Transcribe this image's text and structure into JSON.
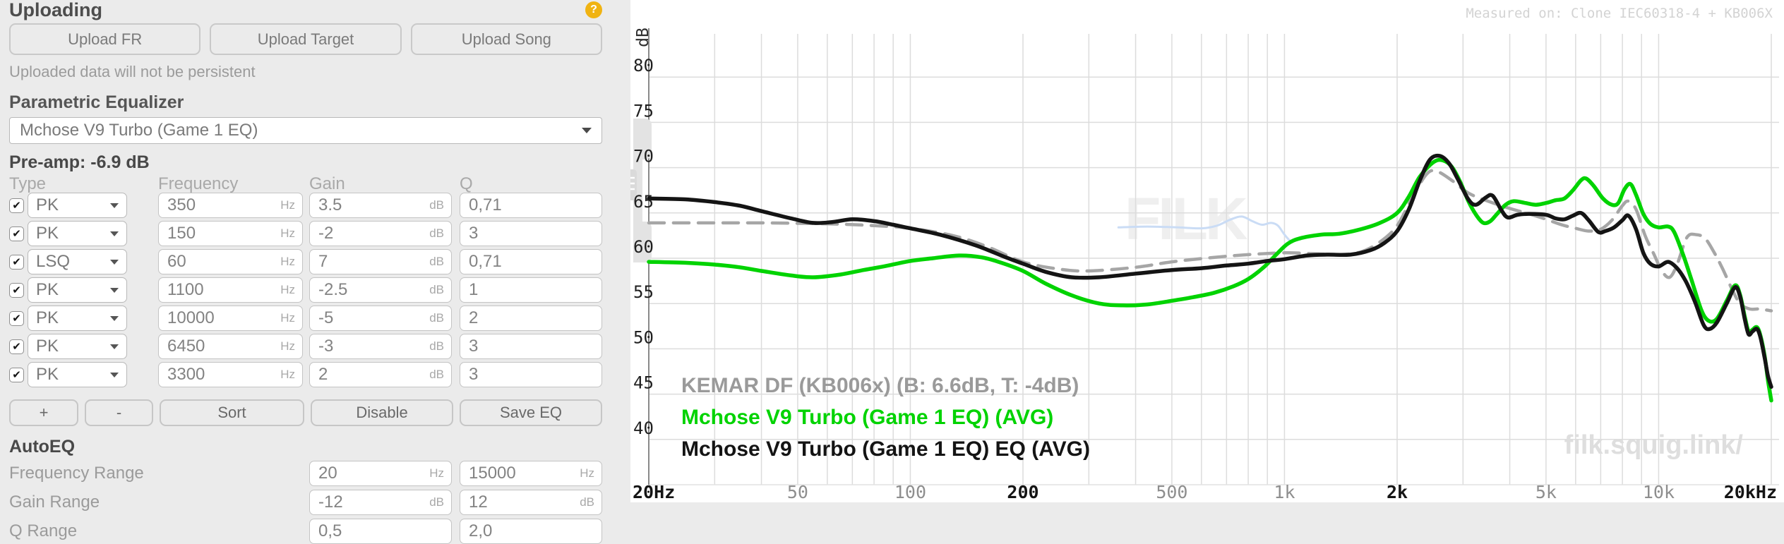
{
  "uploading": {
    "title": "Uploading",
    "help_icon": "?",
    "buttons": [
      "Upload FR",
      "Upload Target",
      "Upload Song"
    ],
    "note": "Uploaded data will not be persistent"
  },
  "parametric_eq": {
    "title": "Parametric Equalizer",
    "selected_profile": "Mchose V9 Turbo (Game 1 EQ)",
    "preamp_label": "Pre-amp: -6.9 dB",
    "columns": [
      "Type",
      "Frequency",
      "Gain",
      "Q"
    ],
    "filters": [
      {
        "enabled": true,
        "type": "PK",
        "freq": "350",
        "freq_unit": "Hz",
        "gain": "3.5",
        "gain_unit": "dB",
        "q": "0,71"
      },
      {
        "enabled": true,
        "type": "PK",
        "freq": "150",
        "freq_unit": "Hz",
        "gain": "-2",
        "gain_unit": "dB",
        "q": "3"
      },
      {
        "enabled": true,
        "type": "LSQ",
        "freq": "60",
        "freq_unit": "Hz",
        "gain": "7",
        "gain_unit": "dB",
        "q": "0,71"
      },
      {
        "enabled": true,
        "type": "PK",
        "freq": "1100",
        "freq_unit": "Hz",
        "gain": "-2.5",
        "gain_unit": "dB",
        "q": "1"
      },
      {
        "enabled": true,
        "type": "PK",
        "freq": "10000",
        "freq_unit": "Hz",
        "gain": "-5",
        "gain_unit": "dB",
        "q": "2"
      },
      {
        "enabled": true,
        "type": "PK",
        "freq": "6450",
        "freq_unit": "Hz",
        "gain": "-3",
        "gain_unit": "dB",
        "q": "3"
      },
      {
        "enabled": true,
        "type": "PK",
        "freq": "3300",
        "freq_unit": "Hz",
        "gain": "2",
        "gain_unit": "dB",
        "q": "3"
      }
    ],
    "actions": [
      "+",
      "-",
      "Sort",
      "Disable",
      "Save EQ"
    ]
  },
  "autoeq": {
    "title": "AutoEQ",
    "rows": [
      {
        "label": "Frequency Range",
        "min": "20",
        "min_unit": "Hz",
        "max": "15000",
        "max_unit": "Hz"
      },
      {
        "label": "Gain Range",
        "min": "-12",
        "min_unit": "dB",
        "max": "12",
        "max_unit": "dB"
      },
      {
        "label": "Q Range",
        "min": "0,5",
        "min_unit": "",
        "max": "2,0",
        "max_unit": ""
      }
    ]
  },
  "chart_data": {
    "type": "line",
    "measured_on": "Measured on: Clone IEC60318-4 + KB006X",
    "watermark": "filk.squig.link/",
    "bg_watermark": "FILK",
    "grid": true,
    "legend_position": "bottom-left",
    "x_axis": {
      "scale": "log",
      "min": 20,
      "max": 20000,
      "gridlines": [
        30,
        40,
        50,
        60,
        70,
        80,
        90,
        100,
        200,
        300,
        400,
        500,
        600,
        700,
        800,
        900,
        1000,
        2000,
        3000,
        4000,
        5000,
        6000,
        7000,
        8000,
        9000,
        10000,
        20000
      ],
      "ticks": [
        {
          "f": 20,
          "label": "20Hz",
          "major": true
        },
        {
          "f": 50,
          "label": "50",
          "major": false
        },
        {
          "f": 100,
          "label": "100",
          "major": false
        },
        {
          "f": 200,
          "label": "200",
          "major": true
        },
        {
          "f": 500,
          "label": "500",
          "major": false
        },
        {
          "f": 1000,
          "label": "1k",
          "major": false
        },
        {
          "f": 2000,
          "label": "2k",
          "major": true
        },
        {
          "f": 5000,
          "label": "5k",
          "major": false
        },
        {
          "f": 10000,
          "label": "10k",
          "major": false
        },
        {
          "f": 20000,
          "label": "20kHz",
          "major": true
        }
      ]
    },
    "y_axis": {
      "label": "dB",
      "min": 35,
      "max": 85,
      "tick_step": 5,
      "ticks": [
        80,
        75,
        70,
        65,
        60,
        55,
        50,
        45,
        40
      ]
    },
    "legend": [
      {
        "text": "KEMAR DF (KB006x) (B: 6.6dB, T: -4dB)",
        "color": "#9a9a9a"
      },
      {
        "text": "Mchose V9 Turbo (Game 1 EQ) (AVG)",
        "color": "#00d300"
      },
      {
        "text": "Mchose V9 Turbo (Game 1 EQ) EQ (AVG)",
        "color": "#141414"
      }
    ],
    "series": [
      {
        "name": "hover-preview-trace",
        "color": "#cadcf5",
        "dash": "",
        "width": 3,
        "points": [
          [
            360,
            63.4
          ],
          [
            430,
            63.5
          ],
          [
            520,
            63.4
          ],
          [
            600,
            63.3
          ],
          [
            660,
            63.6
          ],
          [
            720,
            64.3
          ],
          [
            770,
            64.6
          ],
          [
            820,
            64.1
          ],
          [
            870,
            63.7
          ],
          [
            920,
            63.9
          ],
          [
            960,
            63.6
          ],
          [
            1000,
            62.6
          ],
          [
            1040,
            61.8
          ]
        ]
      },
      {
        "name": "KEMAR DF (KB006x) (B: 6.6dB, T: -4dB)",
        "color": "#a6a6a6",
        "dash": "22 13",
        "width": 4.5,
        "points": [
          [
            20,
            63.9
          ],
          [
            30,
            63.9
          ],
          [
            40,
            63.9
          ],
          [
            60,
            63.8
          ],
          [
            80,
            63.6
          ],
          [
            100,
            63.3
          ],
          [
            130,
            62.5
          ],
          [
            160,
            61.3
          ],
          [
            200,
            59.6
          ],
          [
            250,
            58.8
          ],
          [
            300,
            58.6
          ],
          [
            400,
            59.0
          ],
          [
            500,
            59.6
          ],
          [
            650,
            60.1
          ],
          [
            800,
            60.4
          ],
          [
            1000,
            60.6
          ],
          [
            1200,
            60.5
          ],
          [
            1400,
            60.4
          ],
          [
            1600,
            60.7
          ],
          [
            1800,
            61.8
          ],
          [
            2000,
            63.6
          ],
          [
            2200,
            66.8
          ],
          [
            2400,
            69.3
          ],
          [
            2550,
            69.6
          ],
          [
            2800,
            68.6
          ],
          [
            3100,
            67.2
          ],
          [
            3500,
            66.3
          ],
          [
            4000,
            65.5
          ],
          [
            4500,
            64.9
          ],
          [
            5000,
            64.3
          ],
          [
            5500,
            63.7
          ],
          [
            6000,
            63.3
          ],
          [
            6500,
            63.0
          ],
          [
            7000,
            63.2
          ],
          [
            7500,
            64.2
          ],
          [
            8000,
            65.8
          ],
          [
            8300,
            66.3
          ],
          [
            8700,
            65.4
          ],
          [
            9200,
            62.5
          ],
          [
            9700,
            60.5
          ],
          [
            10200,
            58.6
          ],
          [
            10700,
            57.9
          ],
          [
            11200,
            59.3
          ],
          [
            11900,
            62.3
          ],
          [
            12600,
            62.6
          ],
          [
            13300,
            62.2
          ],
          [
            14000,
            60.8
          ],
          [
            14800,
            58.9
          ],
          [
            15700,
            56.6
          ],
          [
            16500,
            55.0
          ],
          [
            17500,
            54.4
          ],
          [
            18500,
            54.4
          ],
          [
            19300,
            54.3
          ],
          [
            20000,
            54.2
          ]
        ]
      },
      {
        "name": "Mchose V9 Turbo (Game 1 EQ) (AVG)",
        "color": "#00d300",
        "dash": "",
        "width": 5.5,
        "points": [
          [
            20,
            59.6
          ],
          [
            25,
            59.5
          ],
          [
            30,
            59.3
          ],
          [
            35,
            59.0
          ],
          [
            40,
            58.6
          ],
          [
            48,
            58.1
          ],
          [
            55,
            57.9
          ],
          [
            65,
            58.2
          ],
          [
            75,
            58.7
          ],
          [
            85,
            59.1
          ],
          [
            100,
            59.7
          ],
          [
            115,
            60.0
          ],
          [
            135,
            60.3
          ],
          [
            155,
            60.1
          ],
          [
            175,
            59.5
          ],
          [
            200,
            58.6
          ],
          [
            230,
            57.2
          ],
          [
            270,
            55.9
          ],
          [
            320,
            55.0
          ],
          [
            370,
            54.8
          ],
          [
            430,
            54.9
          ],
          [
            500,
            55.3
          ],
          [
            570,
            55.7
          ],
          [
            650,
            56.2
          ],
          [
            730,
            56.9
          ],
          [
            800,
            57.7
          ],
          [
            880,
            59.0
          ],
          [
            950,
            60.4
          ],
          [
            1020,
            61.6
          ],
          [
            1100,
            62.2
          ],
          [
            1250,
            62.6
          ],
          [
            1400,
            62.7
          ],
          [
            1600,
            63.2
          ],
          [
            1800,
            63.9
          ],
          [
            2000,
            65.0
          ],
          [
            2150,
            66.8
          ],
          [
            2300,
            69.0
          ],
          [
            2500,
            70.6
          ],
          [
            2650,
            70.8
          ],
          [
            2800,
            70.1
          ],
          [
            2950,
            68.4
          ],
          [
            3100,
            66.3
          ],
          [
            3250,
            64.8
          ],
          [
            3400,
            63.9
          ],
          [
            3550,
            64.1
          ],
          [
            3700,
            64.9
          ],
          [
            3900,
            65.9
          ],
          [
            4100,
            66.3
          ],
          [
            4400,
            66.1
          ],
          [
            4700,
            65.9
          ],
          [
            5000,
            66.1
          ],
          [
            5300,
            66.4
          ],
          [
            5600,
            66.6
          ],
          [
            5900,
            67.5
          ],
          [
            6200,
            68.6
          ],
          [
            6400,
            68.8
          ],
          [
            6700,
            68.0
          ],
          [
            7100,
            66.6
          ],
          [
            7500,
            65.9
          ],
          [
            7800,
            66.1
          ],
          [
            8100,
            67.6
          ],
          [
            8400,
            68.2
          ],
          [
            8700,
            67.0
          ],
          [
            9100,
            64.9
          ],
          [
            9500,
            63.8
          ],
          [
            10000,
            63.4
          ],
          [
            10600,
            63.5
          ],
          [
            11000,
            62.9
          ],
          [
            11600,
            60.5
          ],
          [
            12200,
            57.8
          ],
          [
            13000,
            54.3
          ],
          [
            13600,
            53.1
          ],
          [
            14300,
            53.3
          ],
          [
            15200,
            55.3
          ],
          [
            16000,
            57.0
          ],
          [
            16500,
            56.0
          ],
          [
            17000,
            53.5
          ],
          [
            17400,
            51.9
          ],
          [
            17800,
            52.1
          ],
          [
            18300,
            52.4
          ],
          [
            18700,
            51.5
          ],
          [
            19200,
            49.2
          ],
          [
            19600,
            46.5
          ],
          [
            20000,
            44.3
          ]
        ]
      },
      {
        "name": "Mchose V9 Turbo (Game 1 EQ) EQ (AVG)",
        "color": "#141414",
        "dash": "",
        "width": 5.5,
        "points": [
          [
            20,
            66.6
          ],
          [
            25,
            66.5
          ],
          [
            30,
            66.2
          ],
          [
            35,
            65.8
          ],
          [
            40,
            65.2
          ],
          [
            48,
            64.4
          ],
          [
            55,
            63.9
          ],
          [
            62,
            64.0
          ],
          [
            70,
            64.3
          ],
          [
            80,
            64.1
          ],
          [
            90,
            63.7
          ],
          [
            100,
            63.3
          ],
          [
            120,
            62.6
          ],
          [
            150,
            61.4
          ],
          [
            180,
            60.1
          ],
          [
            200,
            59.4
          ],
          [
            230,
            58.5
          ],
          [
            270,
            57.9
          ],
          [
            320,
            57.9
          ],
          [
            400,
            58.3
          ],
          [
            500,
            58.7
          ],
          [
            600,
            58.9
          ],
          [
            700,
            59.2
          ],
          [
            800,
            59.4
          ],
          [
            900,
            59.7
          ],
          [
            1000,
            59.9
          ],
          [
            1150,
            60.3
          ],
          [
            1300,
            60.4
          ],
          [
            1500,
            60.4
          ],
          [
            1700,
            60.9
          ],
          [
            1850,
            61.7
          ],
          [
            2000,
            63.0
          ],
          [
            2150,
            65.4
          ],
          [
            2300,
            68.6
          ],
          [
            2450,
            70.9
          ],
          [
            2600,
            71.3
          ],
          [
            2750,
            70.5
          ],
          [
            2900,
            68.8
          ],
          [
            3100,
            66.5
          ],
          [
            3250,
            65.9
          ],
          [
            3450,
            66.7
          ],
          [
            3600,
            66.9
          ],
          [
            3800,
            65.3
          ],
          [
            3950,
            64.5
          ],
          [
            4200,
            64.8
          ],
          [
            4500,
            64.9
          ],
          [
            5000,
            64.8
          ],
          [
            5300,
            64.4
          ],
          [
            5600,
            64.3
          ],
          [
            5900,
            64.7
          ],
          [
            6200,
            65.0
          ],
          [
            6500,
            64.2
          ],
          [
            6900,
            62.9
          ],
          [
            7200,
            63.0
          ],
          [
            7600,
            63.4
          ],
          [
            8000,
            64.2
          ],
          [
            8300,
            64.7
          ],
          [
            8700,
            63.2
          ],
          [
            9100,
            60.6
          ],
          [
            9500,
            59.4
          ],
          [
            10000,
            59.1
          ],
          [
            10600,
            59.6
          ],
          [
            11200,
            58.9
          ],
          [
            11800,
            57.5
          ],
          [
            12500,
            55.2
          ],
          [
            13200,
            52.6
          ],
          [
            13700,
            52.2
          ],
          [
            14300,
            52.9
          ],
          [
            15200,
            55.0
          ],
          [
            16000,
            56.8
          ],
          [
            16500,
            55.8
          ],
          [
            17000,
            53.2
          ],
          [
            17400,
            51.6
          ],
          [
            17800,
            51.9
          ],
          [
            18300,
            52.2
          ],
          [
            18700,
            51.3
          ],
          [
            19200,
            49.0
          ],
          [
            19600,
            47.0
          ],
          [
            20000,
            45.8
          ]
        ]
      }
    ]
  }
}
